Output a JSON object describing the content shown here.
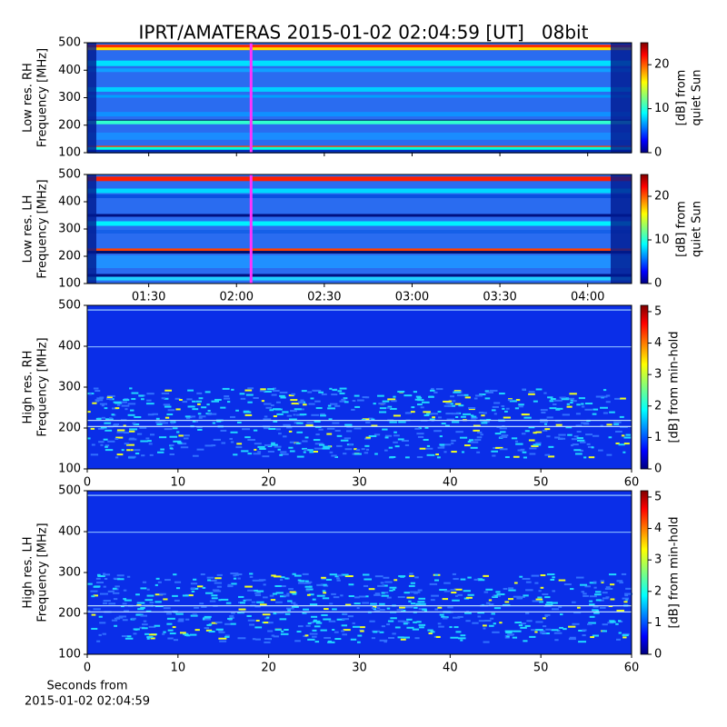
{
  "chart_data": [
    {
      "type": "spectrogram",
      "title": "IPRT/AMATERAS 2015-01-02 02:04:59 [UT]   08bit",
      "ylabel": [
        "Low res. RH",
        "Frequency [MHz]"
      ],
      "ylim": [
        100,
        500
      ],
      "yticks": [
        100,
        200,
        300,
        400,
        500
      ],
      "xlim": [
        69,
        255
      ],
      "marker_x": 124.98,
      "marker_color": "#ff33ff",
      "colorbar": {
        "label": [
          "[dB] from",
          "quiet Sun"
        ],
        "lim": [
          0,
          25
        ],
        "ticks": [
          0,
          10,
          20
        ]
      }
    },
    {
      "type": "spectrogram",
      "ylabel": [
        "Low res. LH",
        "Frequency [MHz]"
      ],
      "ylim": [
        100,
        500
      ],
      "yticks": [
        100,
        200,
        300,
        400,
        500
      ],
      "xlim": [
        69,
        255
      ],
      "marker_x": 124.98,
      "marker_color": "#ff33ff",
      "xticks": [
        {
          "value": 90,
          "label": "01:30"
        },
        {
          "value": 120,
          "label": "02:00"
        },
        {
          "value": 150,
          "label": "02:30"
        },
        {
          "value": 180,
          "label": "03:00"
        },
        {
          "value": 210,
          "label": "03:30"
        },
        {
          "value": 240,
          "label": "04:00"
        }
      ],
      "colorbar": {
        "label": [
          "[dB] from",
          "quiet Sun"
        ],
        "lim": [
          0,
          25
        ],
        "ticks": [
          0,
          10,
          20
        ]
      }
    },
    {
      "type": "spectrogram",
      "ylabel": [
        "High res. RH",
        "Frequency [MHz]"
      ],
      "ylim": [
        100,
        500
      ],
      "yticks": [
        100,
        200,
        300,
        400,
        500
      ],
      "xlim": [
        0,
        60
      ],
      "xticks": [
        0,
        10,
        20,
        30,
        40,
        50,
        60
      ],
      "colorbar": {
        "label": [
          "[dB] from min-hold"
        ],
        "lim": [
          0,
          5.2
        ],
        "ticks": [
          0,
          1,
          2,
          3,
          4,
          5
        ]
      }
    },
    {
      "type": "spectrogram",
      "ylabel": [
        "High res. LH",
        "Frequency [MHz]"
      ],
      "ylim": [
        100,
        500
      ],
      "yticks": [
        100,
        200,
        300,
        400,
        500
      ],
      "xlim": [
        0,
        60
      ],
      "xticks": [
        0,
        10,
        20,
        30,
        40,
        50,
        60
      ],
      "xlabel": [
        "Seconds from",
        "2015-01-02 02:04:59"
      ],
      "colorbar": {
        "label": [
          "[dB] from min-hold"
        ],
        "lim": [
          0,
          5.2
        ],
        "ticks": [
          0,
          1,
          2,
          3,
          4,
          5
        ]
      }
    }
  ]
}
